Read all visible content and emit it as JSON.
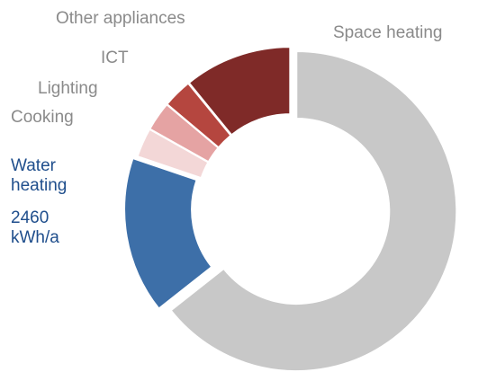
{
  "chart_data": {
    "type": "pie",
    "variant": "donut",
    "categories": [
      "Space heating",
      "Water heating",
      "Cooking",
      "Lighting",
      "ICT",
      "Other appliances"
    ],
    "values": [
      65,
      16,
      3,
      3,
      3,
      11
    ],
    "value_labels": {
      "water_heating": [
        "2460",
        "kWh/a"
      ]
    },
    "exploded": [
      "Space heating",
      "Water heating"
    ],
    "legend": "none (slice labels)"
  },
  "labels": {
    "space_heating": "Space heating",
    "other_appliances": "Other appliances",
    "ict": "ICT",
    "lighting": "Lighting",
    "cooking": "Cooking",
    "water_heating_line1": "Water",
    "water_heating_line2": "heating",
    "water_value_line1": "2460",
    "water_value_line2": "kWh/a"
  },
  "colors": {
    "space_heating": "#c8c8c8",
    "water_heating": "#3d6fa8",
    "cooking": "#f3d7d7",
    "lighting": "#e5a3a3",
    "ict": "#b5463f",
    "other_appliances": "#7f2a28",
    "gray_label": "#8a8a8a",
    "blue_label": "#1f4e8c"
  }
}
